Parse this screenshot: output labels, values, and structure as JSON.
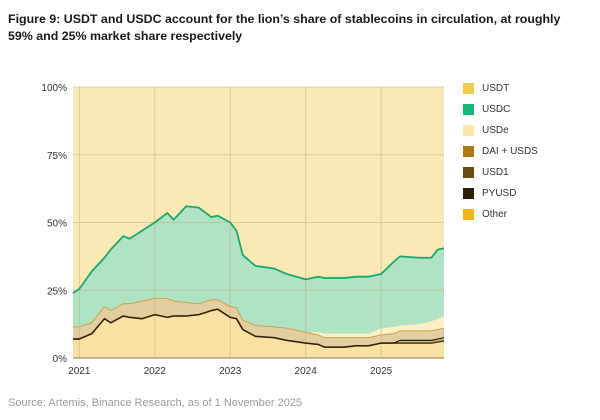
{
  "title": "Figure 9: USDT and USDC account for the lion’s share of stablecoins in circulation, at roughly 59% and 25% market share respectively",
  "source": "Source: Artemis, Binance Research, as of 1 November 2025",
  "chart_data": {
    "type": "area",
    "stacked": true,
    "normalized": true,
    "title": "",
    "xlabel": "",
    "ylabel": "",
    "ylim": [
      0,
      100
    ],
    "y_ticks": [
      "0%",
      "25%",
      "50%",
      "75%",
      "100%"
    ],
    "x_ticks": [
      "2021",
      "2022",
      "2023",
      "2024",
      "2025"
    ],
    "grid": true,
    "legend_position": "right",
    "background": "#fdf8e8",
    "x": [
      "2020-12",
      "2021-01",
      "2021-03",
      "2021-05",
      "2021-06",
      "2021-08",
      "2021-09",
      "2021-11",
      "2022-01",
      "2022-03",
      "2022-04",
      "2022-06",
      "2022-08",
      "2022-10",
      "2022-11",
      "2023-01",
      "2023-02",
      "2023-03",
      "2023-05",
      "2023-08",
      "2023-10",
      "2024-01",
      "2024-03",
      "2024-04",
      "2024-07",
      "2024-09",
      "2024-11",
      "2025-01",
      "2025-03",
      "2025-04",
      "2025-07",
      "2025-09",
      "2025-10",
      "2025-11"
    ],
    "series": [
      {
        "name": "Other",
        "color": "#f0b418",
        "values": [
          7,
          7,
          9,
          14.5,
          13,
          15.5,
          15,
          14.5,
          16,
          15,
          15.5,
          15.5,
          16,
          17.5,
          18,
          15,
          14.5,
          10.5,
          8,
          7.5,
          6.5,
          5.5,
          5,
          4,
          4,
          4.5,
          4.5,
          5.5,
          5.5,
          5.5,
          5.5,
          5.5,
          5.9,
          6.3
        ]
      },
      {
        "name": "PYUSD",
        "color": "#2a1e0b",
        "values": [
          0,
          0,
          0,
          0,
          0,
          0,
          0,
          0,
          0,
          0,
          0,
          0,
          0,
          0,
          0,
          0,
          0,
          0,
          0,
          0,
          0,
          0,
          0,
          0,
          0,
          0,
          0,
          0,
          0,
          0.4,
          0.4,
          0.4,
          0.5,
          0.5
        ]
      },
      {
        "name": "USD1",
        "color": "#6b4d10",
        "values": [
          0,
          0,
          0,
          0,
          0,
          0,
          0,
          0,
          0,
          0,
          0,
          0,
          0,
          0,
          0,
          0,
          0,
          0,
          0,
          0,
          0,
          0,
          0,
          0,
          0,
          0,
          0,
          0,
          0,
          0.6,
          0.6,
          0.6,
          0.6,
          0.7
        ]
      },
      {
        "name": "DAI + USDS",
        "color": "#b07a12",
        "values": [
          4.5,
          4.5,
          4,
          4.5,
          4.5,
          4.5,
          5,
          6.5,
          6,
          7,
          5.5,
          5,
          4,
          4,
          3.5,
          4,
          4,
          3.5,
          4,
          4,
          4.5,
          4,
          3.5,
          3.5,
          3.5,
          3,
          3,
          3,
          3.5,
          3.5,
          3.5,
          3.5,
          3.5,
          3.5
        ]
      },
      {
        "name": "USDe",
        "color": "#fae8a8",
        "values": [
          0,
          0,
          0,
          0,
          0,
          0,
          0,
          0,
          0,
          0,
          0,
          0,
          0,
          0,
          0,
          0,
          0,
          0,
          0,
          0,
          0,
          0,
          1,
          1.5,
          1.5,
          1.5,
          1.5,
          2.5,
          2.5,
          2,
          2.5,
          3.5,
          4,
          4.5
        ]
      },
      {
        "name": "USDC",
        "color": "#14b87a",
        "values": [
          12.5,
          14,
          19,
          18,
          22.5,
          25,
          24,
          26,
          28,
          31.5,
          30,
          35.5,
          35.5,
          30.5,
          31,
          31,
          28.5,
          24,
          22,
          21.5,
          20,
          19.5,
          20.5,
          20.5,
          20.5,
          21,
          21,
          20,
          24,
          25.5,
          24.5,
          23.5,
          25.5,
          25
        ]
      },
      {
        "name": "USDT",
        "color": "#f5c94e",
        "values": [
          76,
          74.5,
          68,
          63,
          60,
          55,
          56,
          53,
          50,
          46.5,
          49,
          44,
          44.5,
          48,
          47.5,
          50,
          53,
          62,
          66,
          67,
          69,
          71,
          70,
          70.5,
          70.5,
          70,
          70,
          69,
          64.5,
          62.5,
          63,
          63,
          60,
          59.5
        ]
      }
    ],
    "legend_order": [
      "USDT",
      "USDC",
      "USDe",
      "DAI + USDS",
      "USD1",
      "PYUSD",
      "Other"
    ]
  }
}
